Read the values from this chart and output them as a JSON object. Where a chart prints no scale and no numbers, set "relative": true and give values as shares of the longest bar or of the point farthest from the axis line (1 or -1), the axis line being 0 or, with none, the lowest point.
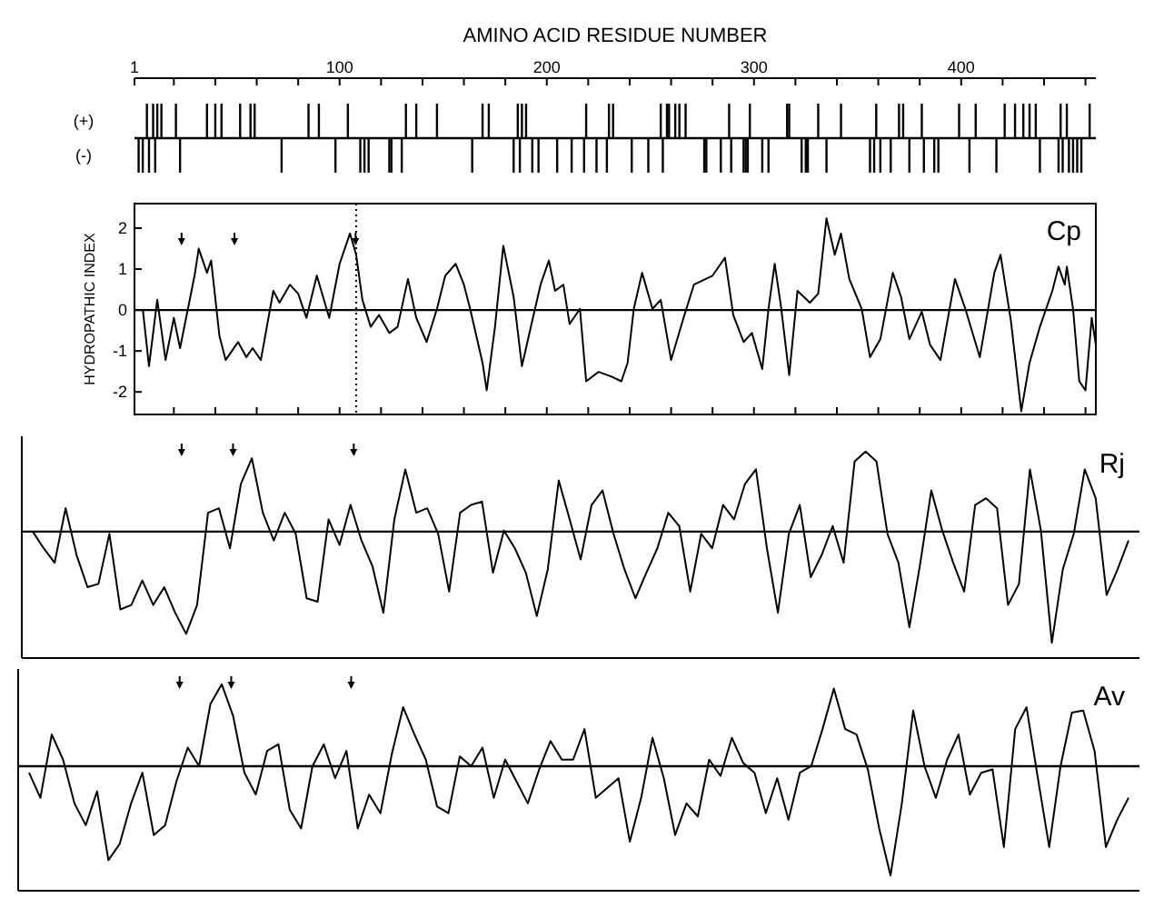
{
  "chart_data": [
    {
      "type": "bar",
      "relative": true,
      "xlabel": "AMINO ACID RESIDUE NUMBER",
      "xlim": [
        1,
        465
      ],
      "tick_labels": "x",
      "xticks": [
        1,
        {
          "value": 20,
          "label": null
        },
        {
          "value": 40,
          "label": null
        },
        {
          "value": 60,
          "label": null
        },
        {
          "value": 80,
          "label": null
        },
        100,
        {
          "value": 120,
          "label": null
        },
        {
          "value": 140,
          "label": null
        },
        {
          "value": 160,
          "label": null
        },
        {
          "value": 180,
          "label": null
        },
        200,
        {
          "value": 220,
          "label": null
        },
        {
          "value": 240,
          "label": null
        },
        {
          "value": 260,
          "label": null
        },
        {
          "value": 280,
          "label": null
        },
        300,
        {
          "value": 320,
          "label": null
        },
        {
          "value": 340,
          "label": null
        },
        {
          "value": 360,
          "label": null
        },
        {
          "value": 380,
          "label": null
        },
        400,
        {
          "value": 420,
          "label": null
        },
        {
          "value": 440,
          "label": null
        },
        {
          "value": 460,
          "label": null
        }
      ],
      "annotations": [
        "(+)",
        "(-)"
      ],
      "color": "#000000",
      "x": [
        3,
        5,
        7,
        8,
        10,
        11,
        12,
        14,
        21,
        23,
        36,
        40,
        43,
        52,
        57,
        59,
        72,
        85,
        90,
        98,
        104,
        110,
        112,
        114,
        124,
        125,
        130,
        132,
        137,
        147,
        164,
        169,
        172,
        184,
        186,
        187,
        188,
        190,
        193,
        196,
        205,
        212,
        218,
        219,
        224,
        229,
        230,
        232,
        241,
        249,
        255,
        256,
        258,
        259,
        262,
        264,
        267,
        276,
        277,
        284,
        288,
        289,
        295,
        296,
        297,
        298,
        304,
        307,
        316,
        317,
        323,
        325,
        326,
        331,
        335,
        342,
        356,
        358,
        359,
        361,
        366,
        370,
        372,
        375,
        381,
        382,
        387,
        389,
        399,
        404,
        407,
        417,
        421,
        426,
        430,
        433,
        436,
        438,
        447,
        448,
        449,
        451,
        452,
        454,
        456,
        458,
        462
      ],
      "values": [
        -1,
        -1,
        1,
        -1,
        1,
        -1,
        1,
        1,
        1,
        -1,
        1,
        1,
        1,
        1,
        1,
        1,
        -1,
        1,
        1,
        -1,
        1,
        -1,
        -1,
        -1,
        -1,
        -1,
        -1,
        1,
        1,
        1,
        -1,
        1,
        1,
        -1,
        1,
        -1,
        1,
        1,
        -1,
        -1,
        -1,
        -1,
        -1,
        1,
        -1,
        -1,
        1,
        1,
        -1,
        -1,
        1,
        -1,
        1,
        1,
        1,
        1,
        1,
        -1,
        -1,
        -1,
        1,
        -1,
        -1,
        -1,
        -1,
        1,
        -1,
        -1,
        1,
        1,
        -1,
        -1,
        -1,
        1,
        -1,
        1,
        -1,
        -1,
        1,
        -1,
        -1,
        1,
        1,
        -1,
        1,
        -1,
        -1,
        -1,
        1,
        -1,
        1,
        -1,
        1,
        1,
        1,
        1,
        1,
        -1,
        -1,
        1,
        -1,
        1,
        -1,
        -1,
        -1,
        -1,
        1
      ]
    },
    {
      "type": "line",
      "title": "Cp",
      "ylabel": "HYDROPATHIC INDEX",
      "color": "#000000",
      "xlim": [
        1,
        465
      ],
      "ylim": [
        -2.55,
        2.6
      ],
      "yticks": [
        -2,
        -1,
        0,
        1,
        2
      ],
      "tick_labels": "y",
      "xticks": [
        {
          "value": 20,
          "label": null
        },
        {
          "value": 40,
          "label": null
        },
        {
          "value": 60,
          "label": null
        },
        {
          "value": 80,
          "label": null
        },
        {
          "value": 100,
          "label": null
        },
        {
          "value": 120,
          "label": null
        },
        {
          "value": 140,
          "label": null
        },
        {
          "value": 160,
          "label": null
        },
        {
          "value": 180,
          "label": null
        },
        {
          "value": 200,
          "label": null
        },
        {
          "value": 220,
          "label": null
        },
        {
          "value": 240,
          "label": null
        },
        {
          "value": 260,
          "label": null
        },
        {
          "value": 280,
          "label": null
        },
        {
          "value": 300,
          "label": null
        },
        {
          "value": 320,
          "label": null
        },
        {
          "value": 340,
          "label": null
        },
        {
          "value": 360,
          "label": null
        },
        {
          "value": 380,
          "label": null
        },
        {
          "value": 400,
          "label": null
        },
        {
          "value": 420,
          "label": null
        },
        {
          "value": 440,
          "label": null
        },
        {
          "value": 460,
          "label": null
        }
      ],
      "ref_lines": [
        {
          "axis": "y",
          "value": 0
        },
        {
          "axis": "x",
          "value": 108,
          "line_style": "dotted"
        }
      ],
      "x": [
        5,
        8,
        12,
        16,
        20,
        23,
        30,
        32,
        36,
        38,
        42,
        45,
        51,
        55,
        58,
        62,
        68,
        71,
        76,
        80,
        84,
        89,
        95,
        100,
        105,
        108,
        111,
        115,
        119,
        124,
        128,
        133,
        137,
        142,
        147,
        151,
        156,
        160,
        163,
        169,
        171,
        175,
        179,
        184,
        188,
        193,
        197,
        201,
        204,
        208,
        211,
        216,
        219,
        225,
        231,
        236,
        239,
        242,
        246,
        251,
        255,
        260,
        266,
        271,
        280,
        286,
        290,
        295,
        299,
        304,
        307,
        310,
        313,
        317,
        321,
        327,
        331,
        335,
        339,
        342,
        346,
        352,
        356,
        361,
        367,
        371,
        375,
        381,
        385,
        390,
        397,
        402,
        409,
        416,
        419,
        424,
        429,
        433,
        438,
        444,
        447,
        450,
        451,
        454,
        457,
        460,
        463,
        465
      ],
      "values": [
        0.03,
        -1.37,
        0.25,
        -1.22,
        -0.19,
        -0.93,
        0.84,
        1.5,
        0.91,
        1.21,
        -0.63,
        -1.22,
        -0.78,
        -1.15,
        -0.93,
        -1.22,
        0.47,
        0.18,
        0.62,
        0.4,
        -0.19,
        0.84,
        -0.19,
        1.13,
        1.87,
        1.35,
        0.25,
        -0.41,
        -0.12,
        -0.56,
        -0.41,
        0.76,
        -0.19,
        -0.78,
        0.03,
        0.84,
        1.13,
        0.62,
        0.03,
        -1.29,
        -1.96,
        -0.41,
        1.57,
        0.32,
        -1.37,
        -0.26,
        0.62,
        1.21,
        0.47,
        0.62,
        -0.34,
        0.03,
        -1.74,
        -1.51,
        -1.62,
        -1.74,
        -1.29,
        0.03,
        0.91,
        0.03,
        0.25,
        -1.22,
        -0.19,
        0.62,
        0.84,
        1.28,
        -0.12,
        -0.78,
        -0.56,
        -1.44,
        0.03,
        1.13,
        0.1,
        -1.59,
        0.47,
        0.18,
        0.4,
        2.24,
        1.35,
        1.87,
        0.76,
        0.03,
        -1.15,
        -0.71,
        0.91,
        0.32,
        -0.71,
        -0.04,
        -0.85,
        -1.22,
        0.76,
        0.03,
        -1.15,
        0.91,
        1.35,
        -0.26,
        -2.47,
        -1.29,
        -0.41,
        0.47,
        1.06,
        0.62,
        1.06,
        0.03,
        -1.74,
        -1.96,
        -0.19,
        -0.85
      ]
    },
    {
      "type": "line",
      "title": "Rj",
      "relative": true,
      "color": "#000000",
      "categories": [
        null,
        null,
        null,
        null,
        null,
        null,
        null,
        null,
        null,
        null,
        null,
        null,
        null,
        null,
        null,
        null,
        null,
        null,
        null,
        null,
        null,
        null,
        null,
        null,
        null,
        null,
        null,
        null,
        null,
        null,
        null,
        null,
        null,
        null,
        null,
        null,
        null,
        null,
        null,
        null,
        null,
        null,
        null,
        null,
        null,
        null,
        null,
        null,
        null,
        null,
        null,
        null,
        null,
        null,
        null,
        null,
        null,
        null,
        null,
        null,
        null,
        null,
        null,
        null,
        null,
        null,
        null,
        null,
        null,
        null,
        null,
        null,
        null,
        null,
        null,
        null,
        null,
        null,
        null,
        null,
        null,
        null,
        null,
        null,
        null,
        null,
        null,
        null,
        null,
        null,
        null,
        null,
        null,
        null,
        null,
        null,
        null,
        null,
        null,
        null,
        null
      ],
      "values": [
        0,
        -0.15,
        -0.28,
        0.21,
        -0.21,
        -0.5,
        -0.47,
        -0.02,
        -0.7,
        -0.66,
        -0.44,
        -0.66,
        -0.5,
        -0.73,
        -0.92,
        -0.66,
        0.17,
        0.21,
        -0.15,
        0.43,
        0.66,
        0.17,
        -0.08,
        0.17,
        -0.02,
        -0.6,
        -0.63,
        0.11,
        -0.12,
        0.24,
        -0.08,
        -0.31,
        -0.73,
        0.11,
        0.56,
        0.17,
        0.21,
        -0.02,
        -0.54,
        0.17,
        0.24,
        0.27,
        -0.37,
        0.01,
        -0.15,
        -0.37,
        -0.76,
        -0.34,
        0.46,
        0.11,
        -0.25,
        0.24,
        0.37,
        -0.02,
        -0.34,
        -0.6,
        -0.37,
        -0.15,
        0.17,
        0.05,
        -0.54,
        -0.02,
        -0.15,
        0.24,
        0.11,
        0.43,
        0.56,
        -0.15,
        -0.73,
        -0.02,
        0.24,
        -0.41,
        -0.21,
        0.05,
        -0.28,
        0.63,
        0.72,
        0.63,
        -0.02,
        -0.28,
        -0.86,
        -0.28,
        0.37,
        0.01,
        -0.28,
        -0.54,
        0.24,
        0.3,
        0.21,
        -0.66,
        -0.47,
        0.56,
        0.01,
        -1,
        -0.34,
        -0.02,
        0.56,
        0.3,
        -0.57,
        -0.34,
        -0.08
      ]
    },
    {
      "type": "line",
      "title": "Av",
      "relative": true,
      "color": "#000000",
      "categories": [
        null,
        null,
        null,
        null,
        null,
        null,
        null,
        null,
        null,
        null,
        null,
        null,
        null,
        null,
        null,
        null,
        null,
        null,
        null,
        null,
        null,
        null,
        null,
        null,
        null,
        null,
        null,
        null,
        null,
        null,
        null,
        null,
        null,
        null,
        null,
        null,
        null,
        null,
        null,
        null,
        null,
        null,
        null,
        null,
        null,
        null,
        null,
        null,
        null,
        null,
        null,
        null,
        null,
        null,
        null,
        null,
        null,
        null,
        null,
        null,
        null,
        null,
        null,
        null,
        null,
        null,
        null,
        null,
        null,
        null,
        null,
        null,
        null,
        null,
        null,
        null,
        null,
        null,
        null,
        null,
        null,
        null,
        null,
        null,
        null,
        null,
        null,
        null,
        null,
        null,
        null,
        null,
        null,
        null,
        null,
        null,
        null,
        null
      ],
      "values": [
        -0.06,
        -0.29,
        0.29,
        0.06,
        -0.34,
        -0.54,
        -0.23,
        -0.86,
        -0.71,
        -0.34,
        -0.06,
        -0.63,
        -0.54,
        -0.14,
        0.17,
        0,
        0.57,
        0.75,
        0.46,
        -0.06,
        -0.26,
        0.14,
        0.2,
        -0.4,
        -0.57,
        0,
        0.2,
        -0.11,
        0.14,
        -0.57,
        -0.26,
        -0.43,
        0.11,
        0.54,
        0.29,
        0.06,
        -0.37,
        -0.43,
        0.09,
        0,
        0.17,
        -0.29,
        0.06,
        -0.14,
        -0.34,
        -0.03,
        0.23,
        0.06,
        0.06,
        0.34,
        -0.29,
        -0.2,
        -0.11,
        -0.69,
        -0.29,
        0.26,
        -0.11,
        -0.63,
        -0.34,
        -0.46,
        0.06,
        -0.09,
        0.26,
        0.03,
        -0.06,
        -0.43,
        -0.11,
        -0.49,
        -0.06,
        0,
        0.34,
        0.71,
        0.34,
        0.29,
        -0.03,
        -0.57,
        -1,
        -0.34,
        0.51,
        0,
        -0.29,
        0.06,
        0.29,
        -0.26,
        -0.06,
        -0.03,
        -0.74,
        0.34,
        0.54,
        -0.11,
        -0.74,
        0,
        0.49,
        0.51,
        0.14,
        -0.74,
        -0.49,
        -0.29
      ]
    }
  ]
}
